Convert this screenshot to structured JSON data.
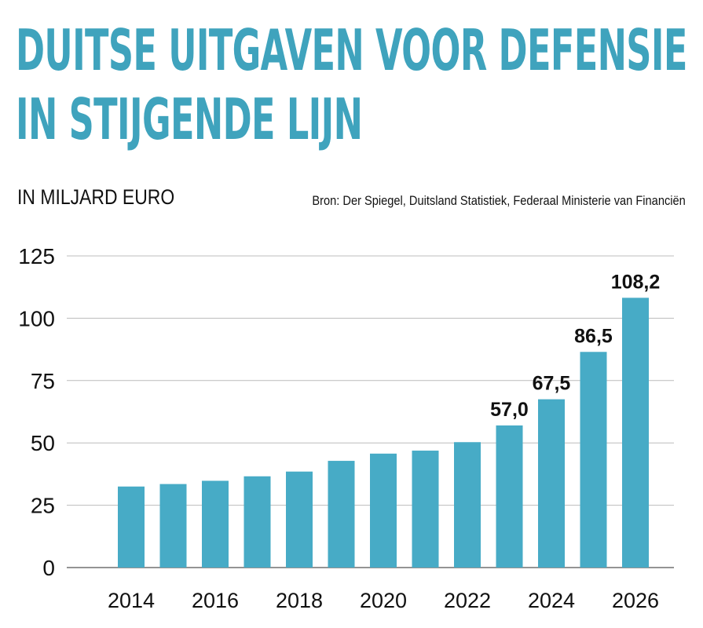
{
  "header": {
    "title_line1": "DUITSE UITGAVEN VOOR DEFENSIE",
    "title_line2": "IN STIJGENDE LIJN",
    "subtitle": "IN MILJARD EURO",
    "source": "Bron: Der Spiegel, Duitsland Statistiek, Federaal Ministerie van Financiën"
  },
  "chart_data": {
    "type": "bar",
    "title": "DUITSE UITGAVEN VOOR DEFENSIE IN STIJGENDE LIJN",
    "ylabel": "IN MILJARD EURO",
    "xlabel": "",
    "categories": [
      "2014",
      "2015",
      "2016",
      "2017",
      "2018",
      "2019",
      "2020",
      "2021",
      "2022",
      "2023",
      "2024",
      "2025",
      "2026"
    ],
    "values": [
      32.5,
      33.5,
      34.8,
      36.6,
      38.5,
      42.8,
      45.7,
      46.9,
      50.3,
      57.0,
      67.5,
      86.5,
      108.2
    ],
    "data_labels": [
      "",
      "",
      "",
      "",
      "",
      "",
      "",
      "",
      "",
      "57,0",
      "67,5",
      "86,5",
      "108,2"
    ],
    "x_tick_labels": [
      "2014",
      "",
      "2016",
      "",
      "2018",
      "",
      "2020",
      "",
      "2022",
      "",
      "2024",
      "",
      "2026"
    ],
    "y_ticks": [
      0,
      25,
      50,
      75,
      100,
      125
    ],
    "ylim": [
      0,
      125
    ],
    "grid": true,
    "bar_color": "#47abc6"
  }
}
